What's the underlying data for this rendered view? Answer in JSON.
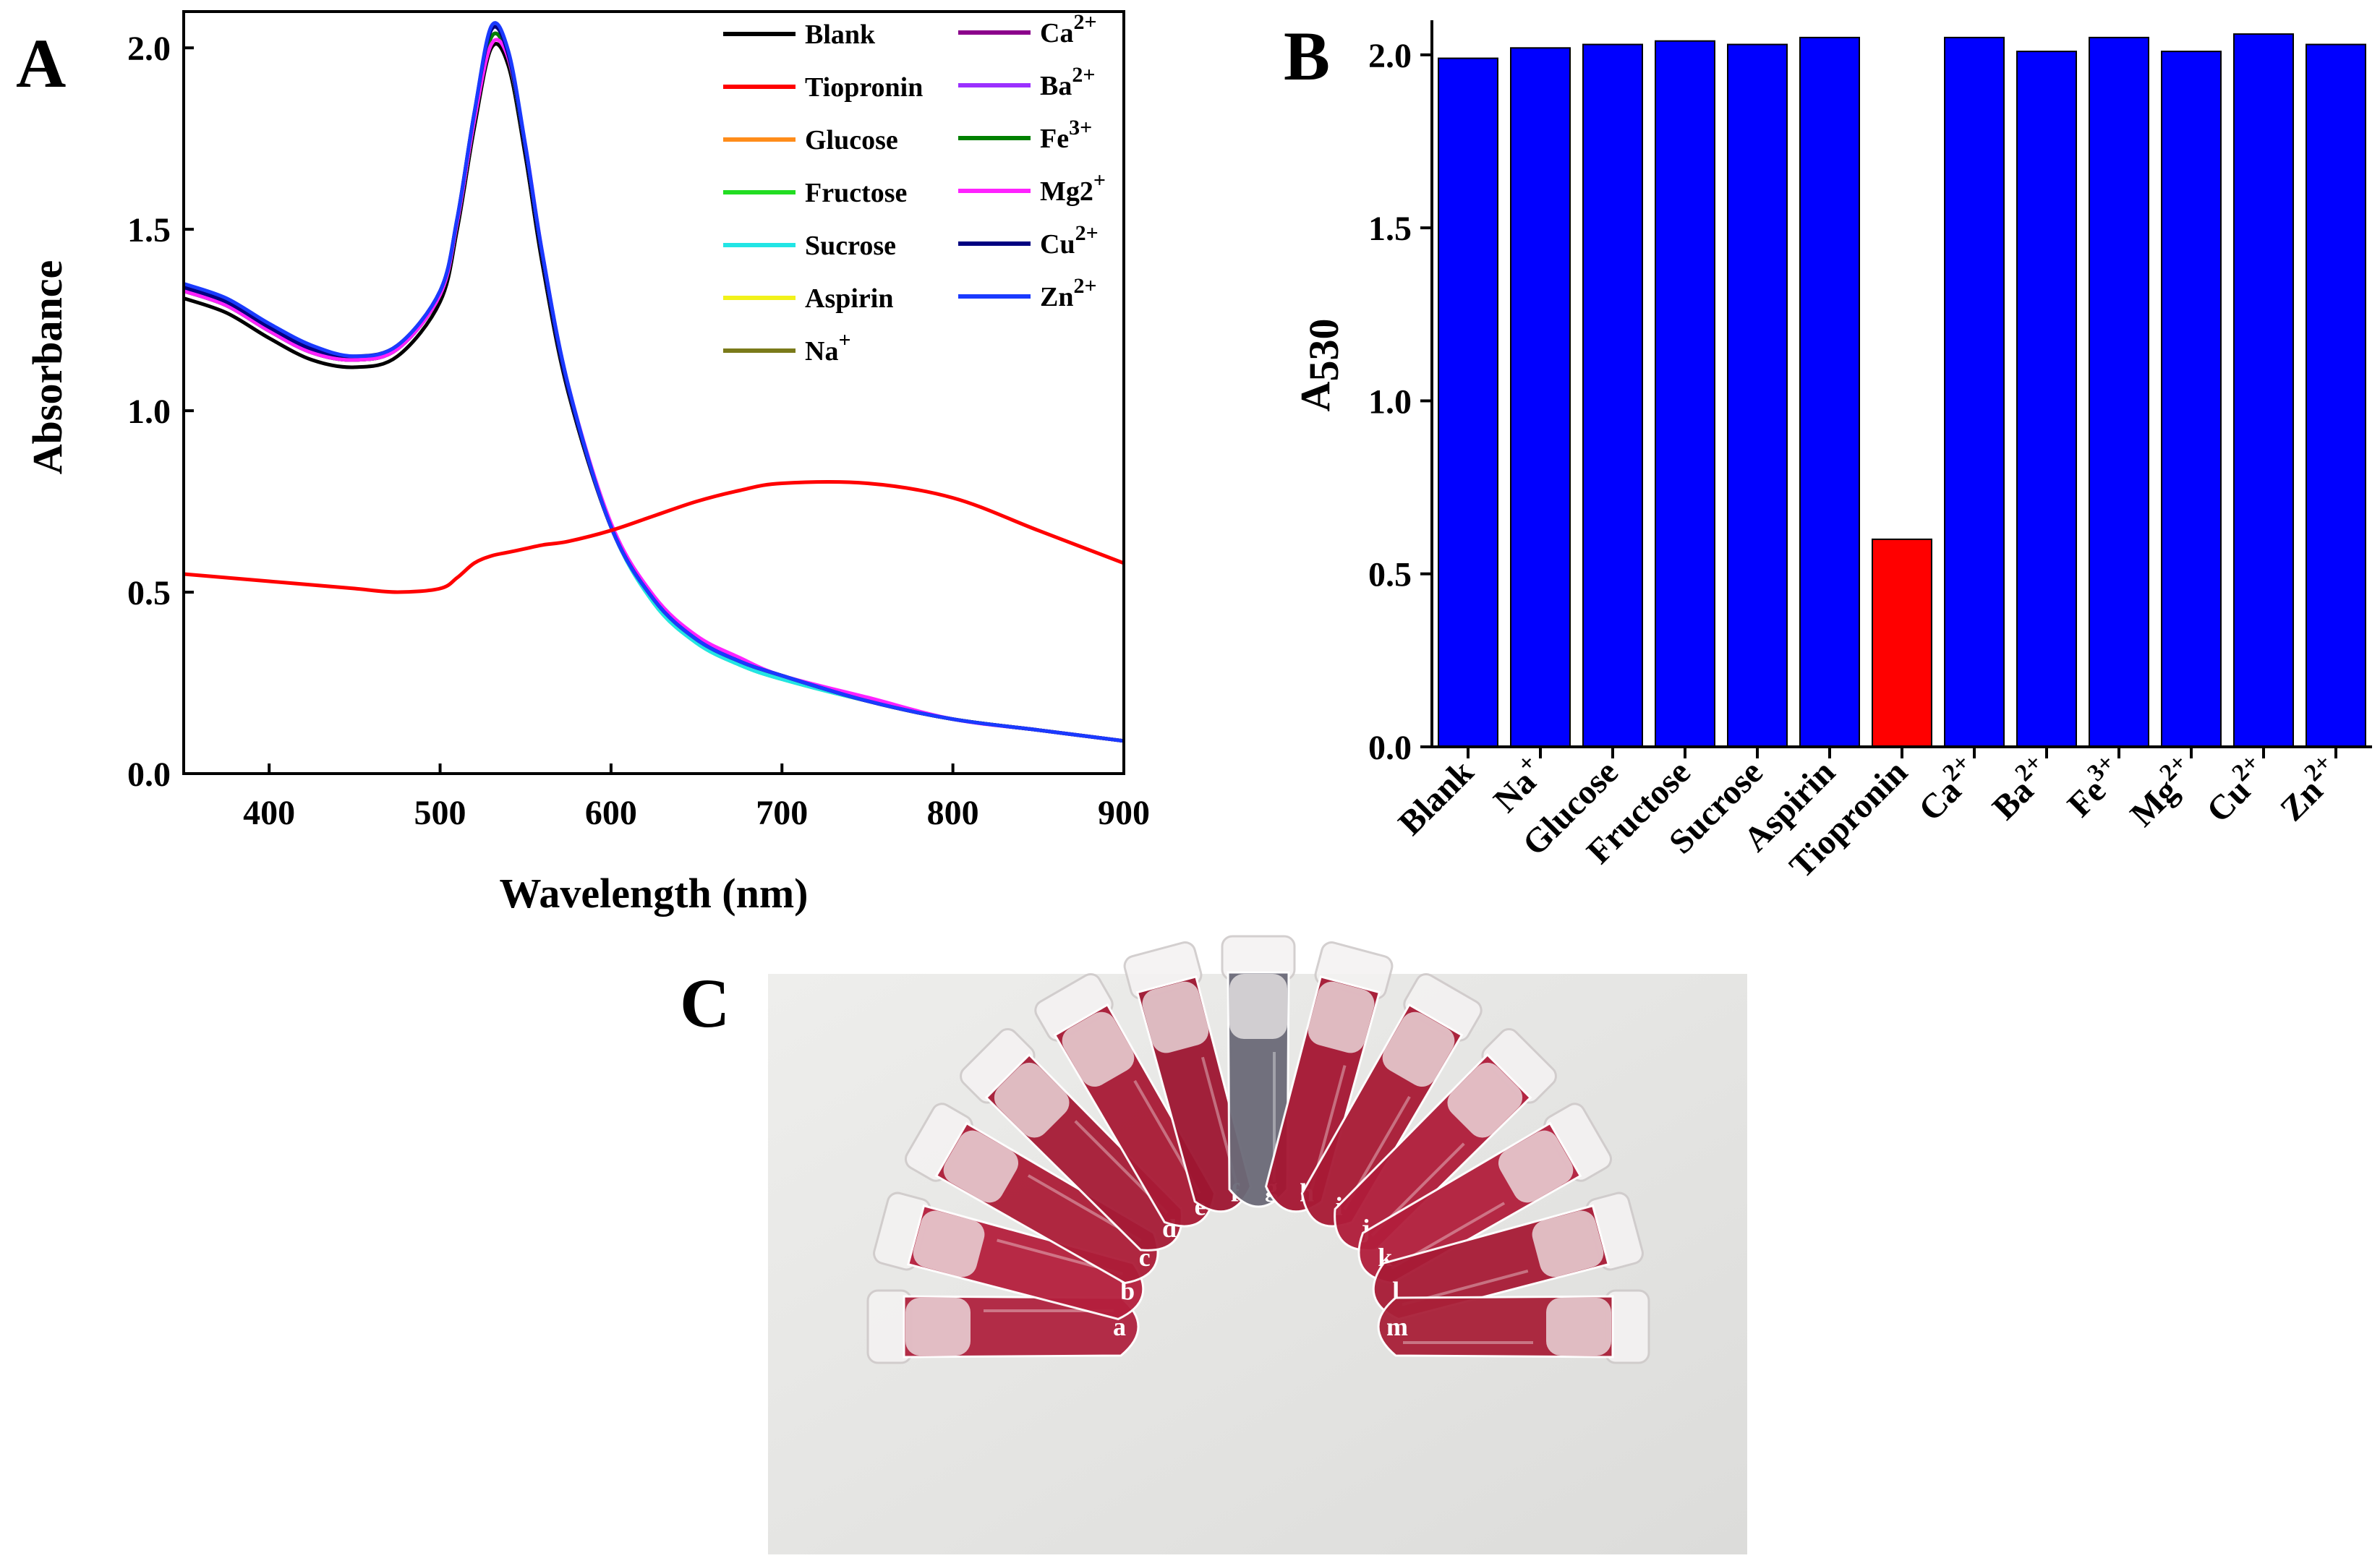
{
  "figure": {
    "panel_labels": [
      "A",
      "B",
      "C"
    ]
  },
  "colors": {
    "blue_bar": "#0000ff",
    "red_bar": "#ff0000"
  },
  "chart_data": [
    {
      "panel": "A",
      "type": "line",
      "title": "",
      "xlabel": "Wavelength (nm)",
      "ylabel": "Absorbance",
      "xlim": [
        350,
        900
      ],
      "ylim": [
        0.0,
        2.1
      ],
      "xticks": [
        400,
        500,
        600,
        700,
        800,
        900
      ],
      "yticks": [
        0.0,
        0.5,
        1.0,
        1.5,
        2.0
      ],
      "ytick_labels": [
        "0.0",
        "0.5",
        "1.0",
        "1.5",
        "2.0"
      ],
      "legend_position": "top-right",
      "x": [
        350,
        375,
        400,
        425,
        450,
        475,
        500,
        510,
        520,
        530,
        540,
        550,
        560,
        575,
        600,
        625,
        650,
        675,
        700,
        750,
        800,
        850,
        900
      ],
      "series": [
        {
          "name": "Blank",
          "sup": "",
          "color": "#000000",
          "values": [
            1.31,
            1.27,
            1.2,
            1.14,
            1.12,
            1.15,
            1.3,
            1.5,
            1.78,
            2.0,
            1.95,
            1.7,
            1.4,
            1.05,
            0.68,
            0.48,
            0.37,
            0.31,
            0.27,
            0.2,
            0.15,
            0.12,
            0.09
          ]
        },
        {
          "name": "Tiopronin",
          "sup": "",
          "color": "#ff0000",
          "values": [
            0.55,
            0.54,
            0.53,
            0.52,
            0.51,
            0.5,
            0.51,
            0.54,
            0.58,
            0.6,
            0.61,
            0.62,
            0.63,
            0.64,
            0.67,
            0.71,
            0.75,
            0.78,
            0.8,
            0.8,
            0.76,
            0.67,
            0.58
          ]
        },
        {
          "name": "Glucose",
          "sup": "",
          "color": "#ff8c1a",
          "values": [
            1.33,
            1.29,
            1.22,
            1.16,
            1.14,
            1.17,
            1.32,
            1.52,
            1.8,
            2.03,
            1.97,
            1.72,
            1.42,
            1.06,
            0.68,
            0.48,
            0.37,
            0.31,
            0.27,
            0.2,
            0.15,
            0.12,
            0.09
          ]
        },
        {
          "name": "Fructose",
          "sup": "",
          "color": "#22dd22",
          "values": [
            1.33,
            1.29,
            1.22,
            1.16,
            1.14,
            1.17,
            1.32,
            1.52,
            1.8,
            2.03,
            1.97,
            1.72,
            1.42,
            1.06,
            0.68,
            0.47,
            0.36,
            0.3,
            0.26,
            0.2,
            0.15,
            0.12,
            0.09
          ]
        },
        {
          "name": "Sucrose",
          "sup": "",
          "color": "#22e5e5",
          "values": [
            1.33,
            1.29,
            1.22,
            1.16,
            1.14,
            1.17,
            1.32,
            1.52,
            1.8,
            2.03,
            1.97,
            1.72,
            1.42,
            1.06,
            0.68,
            0.47,
            0.36,
            0.3,
            0.26,
            0.2,
            0.15,
            0.12,
            0.09
          ]
        },
        {
          "name": "Aspirin",
          "sup": "",
          "color": "#f2f21a",
          "values": [
            1.33,
            1.29,
            1.22,
            1.16,
            1.14,
            1.17,
            1.32,
            1.52,
            1.8,
            2.03,
            1.97,
            1.72,
            1.42,
            1.06,
            0.68,
            0.48,
            0.37,
            0.31,
            0.27,
            0.2,
            0.15,
            0.12,
            0.09
          ]
        },
        {
          "name": "Na",
          "sup": "+",
          "color": "#7a7a1a",
          "values": [
            1.33,
            1.29,
            1.22,
            1.16,
            1.14,
            1.17,
            1.32,
            1.52,
            1.8,
            2.03,
            1.97,
            1.72,
            1.42,
            1.06,
            0.68,
            0.48,
            0.37,
            0.31,
            0.27,
            0.2,
            0.15,
            0.12,
            0.09
          ]
        },
        {
          "name": "Ca",
          "sup": "2+",
          "color": "#8b008b",
          "values": [
            1.33,
            1.29,
            1.22,
            1.16,
            1.14,
            1.17,
            1.32,
            1.52,
            1.8,
            2.03,
            1.97,
            1.72,
            1.42,
            1.06,
            0.68,
            0.48,
            0.37,
            0.31,
            0.27,
            0.2,
            0.15,
            0.12,
            0.09
          ]
        },
        {
          "name": "Ba",
          "sup": "2+",
          "color": "#9b30ff",
          "values": [
            1.33,
            1.29,
            1.22,
            1.16,
            1.14,
            1.17,
            1.32,
            1.52,
            1.8,
            2.03,
            1.97,
            1.72,
            1.42,
            1.06,
            0.68,
            0.48,
            0.37,
            0.31,
            0.27,
            0.2,
            0.15,
            0.12,
            0.09
          ]
        },
        {
          "name": "Fe",
          "sup": "3+",
          "color": "#008000",
          "values": [
            1.33,
            1.29,
            1.22,
            1.16,
            1.14,
            1.17,
            1.32,
            1.52,
            1.8,
            2.03,
            1.97,
            1.72,
            1.42,
            1.06,
            0.68,
            0.48,
            0.37,
            0.31,
            0.27,
            0.2,
            0.15,
            0.12,
            0.09
          ]
        },
        {
          "name": "Mg2",
          "sup": "+",
          "color": "#ff22ff",
          "values": [
            1.33,
            1.29,
            1.22,
            1.16,
            1.14,
            1.17,
            1.32,
            1.52,
            1.8,
            2.01,
            1.97,
            1.73,
            1.43,
            1.07,
            0.69,
            0.49,
            0.38,
            0.32,
            0.27,
            0.21,
            0.15,
            0.12,
            0.09
          ]
        },
        {
          "name": "Cu",
          "sup": "2+",
          "color": "#000080",
          "values": [
            1.34,
            1.3,
            1.23,
            1.17,
            1.15,
            1.18,
            1.33,
            1.53,
            1.82,
            2.05,
            1.98,
            1.72,
            1.42,
            1.06,
            0.68,
            0.48,
            0.37,
            0.31,
            0.27,
            0.2,
            0.15,
            0.12,
            0.09
          ]
        },
        {
          "name": "Zn",
          "sup": "2+",
          "color": "#1a3aff",
          "values": [
            1.35,
            1.31,
            1.24,
            1.18,
            1.15,
            1.18,
            1.33,
            1.53,
            1.82,
            2.06,
            1.99,
            1.73,
            1.43,
            1.07,
            0.68,
            0.48,
            0.37,
            0.31,
            0.27,
            0.2,
            0.15,
            0.12,
            0.09
          ]
        }
      ]
    },
    {
      "panel": "B",
      "type": "bar",
      "title": "",
      "xlabel": "",
      "ylabel": "A530",
      "ylim": [
        0.0,
        2.1
      ],
      "yticks": [
        0.0,
        0.5,
        1.0,
        1.5,
        2.0
      ],
      "ytick_labels": [
        "0.0",
        "0.5",
        "1.0",
        "1.5",
        "2.0"
      ],
      "categories": [
        {
          "name": "Blank",
          "sup": ""
        },
        {
          "name": "Na",
          "sup": "+"
        },
        {
          "name": "Glucose",
          "sup": ""
        },
        {
          "name": "Fructose",
          "sup": ""
        },
        {
          "name": "Sucrose",
          "sup": ""
        },
        {
          "name": "Aspirin",
          "sup": ""
        },
        {
          "name": "Tiopronin",
          "sup": ""
        },
        {
          "name": "Ca",
          "sup": "2+"
        },
        {
          "name": "Ba",
          "sup": "2+"
        },
        {
          "name": "Fe",
          "sup": "3+"
        },
        {
          "name": "Mg",
          "sup": "2+"
        },
        {
          "name": "Cu",
          "sup": "2+"
        },
        {
          "name": "Zn",
          "sup": "2+"
        }
      ],
      "values": [
        1.99,
        2.02,
        2.03,
        2.04,
        2.03,
        2.05,
        0.6,
        2.05,
        2.01,
        2.05,
        2.01,
        2.06,
        2.03
      ],
      "highlight_index": 6
    }
  ],
  "photo": {
    "tube_labels": [
      "a",
      "b",
      "c",
      "d",
      "e",
      "f",
      "g",
      "h",
      "i",
      "j",
      "k",
      "l",
      "m"
    ],
    "tube_colors": [
      "#b0233f",
      "#b51f3d",
      "#ad1d38",
      "#a61b36",
      "#a81a35",
      "#9e1631",
      "#6b6a78",
      "#a51632",
      "#a81a35",
      "#b01c3a",
      "#b21e3c",
      "#a81b36",
      "#a92038"
    ],
    "background_color": "#e8e8e6"
  }
}
